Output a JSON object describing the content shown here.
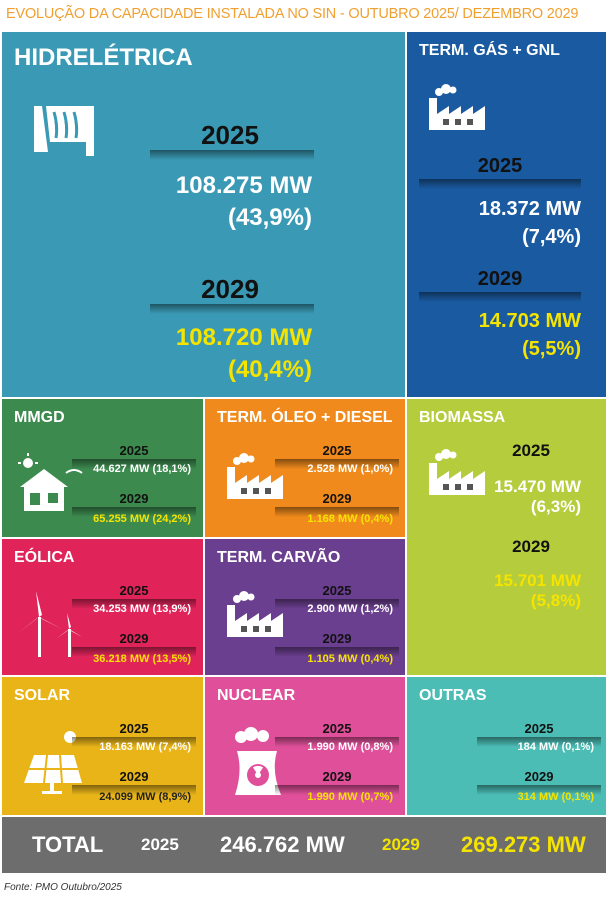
{
  "title": "EVOLUÇÃO DA CAPACIDADE INSTALADA NO SIN - OUTUBRO 2025/ DEZEMBRO 2029",
  "years": [
    "2025",
    "2029"
  ],
  "tiles": [
    {
      "name": "HIDRELÉTRICA",
      "v2025": "108.275 MW",
      "p2025": "(43,9%)",
      "v2029": "108.720 MW",
      "p2029": "(40,4%)"
    },
    {
      "name": "TERM. GÁS + GNL",
      "v2025": "18.372 MW",
      "p2025": "(7,4%)",
      "v2029": "14.703 MW",
      "p2029": "(5,5%)"
    },
    {
      "name": "MMGD",
      "v2025": "44.627 MW",
      "p2025": "(18,1%)",
      "v2029": "65.255 MW",
      "p2029": "(24,2%)"
    },
    {
      "name": "TERM. ÓLEO + DIESEL",
      "v2025": "2.528 MW",
      "p2025": "(1,0%)",
      "v2029": "1.168 MW",
      "p2029": "(0,4%)"
    },
    {
      "name": "BIOMASSA",
      "v2025": "15.470 MW",
      "p2025": "(6,3%)",
      "v2029": "15.701 MW",
      "p2029": "(5,8%)"
    },
    {
      "name": "EÓLICA",
      "v2025": "34.253 MW",
      "p2025": "(13,9%)",
      "v2029": "36.218 MW",
      "p2029": "(13,5%)"
    },
    {
      "name": "TERM. CARVÃO",
      "v2025": "2.900 MW",
      "p2025": "(1,2%)",
      "v2029": "1.105 MW",
      "p2029": "(0,4%)"
    },
    {
      "name": "SOLAR",
      "v2025": "18.163 MW",
      "p2025": "(7,4%)",
      "v2029": "24.099 MW",
      "p2029": "(8,9%)"
    },
    {
      "name": "NUCLEAR",
      "v2025": "1.990 MW",
      "p2025": "(0,8%)",
      "v2029": "1.990 MW",
      "p2029": "(0,7%)"
    },
    {
      "name": "OUTRAS",
      "v2025": "184 MW",
      "p2025": "(0,1%)",
      "v2029": "314 MW",
      "p2029": "(0,1%)"
    }
  ],
  "total": {
    "label": "TOTAL",
    "v2025": "246.762 MW",
    "v2029": "269.273 MW"
  },
  "source": "Fonte: PMO Outubro/2025"
}
